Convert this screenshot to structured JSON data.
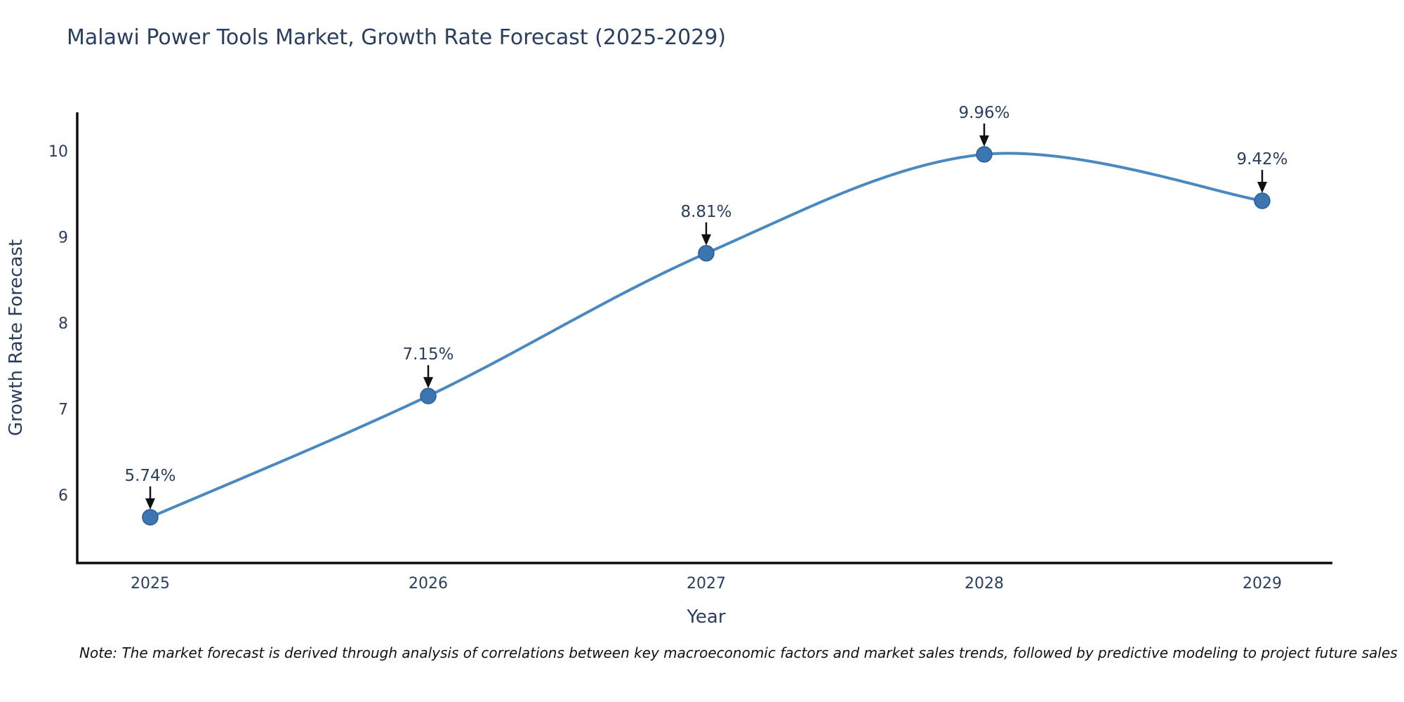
{
  "chart_data": {
    "type": "line",
    "title": "Malawi Power Tools Market, Growth Rate Forecast (2025-2029)",
    "xlabel": "Year",
    "ylabel": "Growth Rate Forecast",
    "x": [
      2025,
      2026,
      2027,
      2028,
      2029
    ],
    "series": [
      {
        "name": "Growth Rate Forecast",
        "values": [
          5.74,
          7.15,
          8.81,
          9.96,
          9.42
        ]
      }
    ],
    "point_labels": [
      "5.74%",
      "7.15%",
      "8.81%",
      "9.96%",
      "9.42%"
    ],
    "yticks": [
      6,
      7,
      8,
      9,
      10
    ],
    "ylim": [
      5.21,
      10.45
    ],
    "grid": false,
    "legend": "none",
    "line_shape": "spline",
    "colors": {
      "line": "#4a88c0",
      "marker": "#3b76b0",
      "marker_edge": "#2a5f94",
      "axis": "#0d0d0d",
      "text": "#2a3f5f",
      "annotation_arrow": "#111111"
    }
  },
  "note": "Note: The market forecast is derived through analysis of correlations between key macroeconomic factors and market sales trends, followed by predictive modeling to project future sales"
}
